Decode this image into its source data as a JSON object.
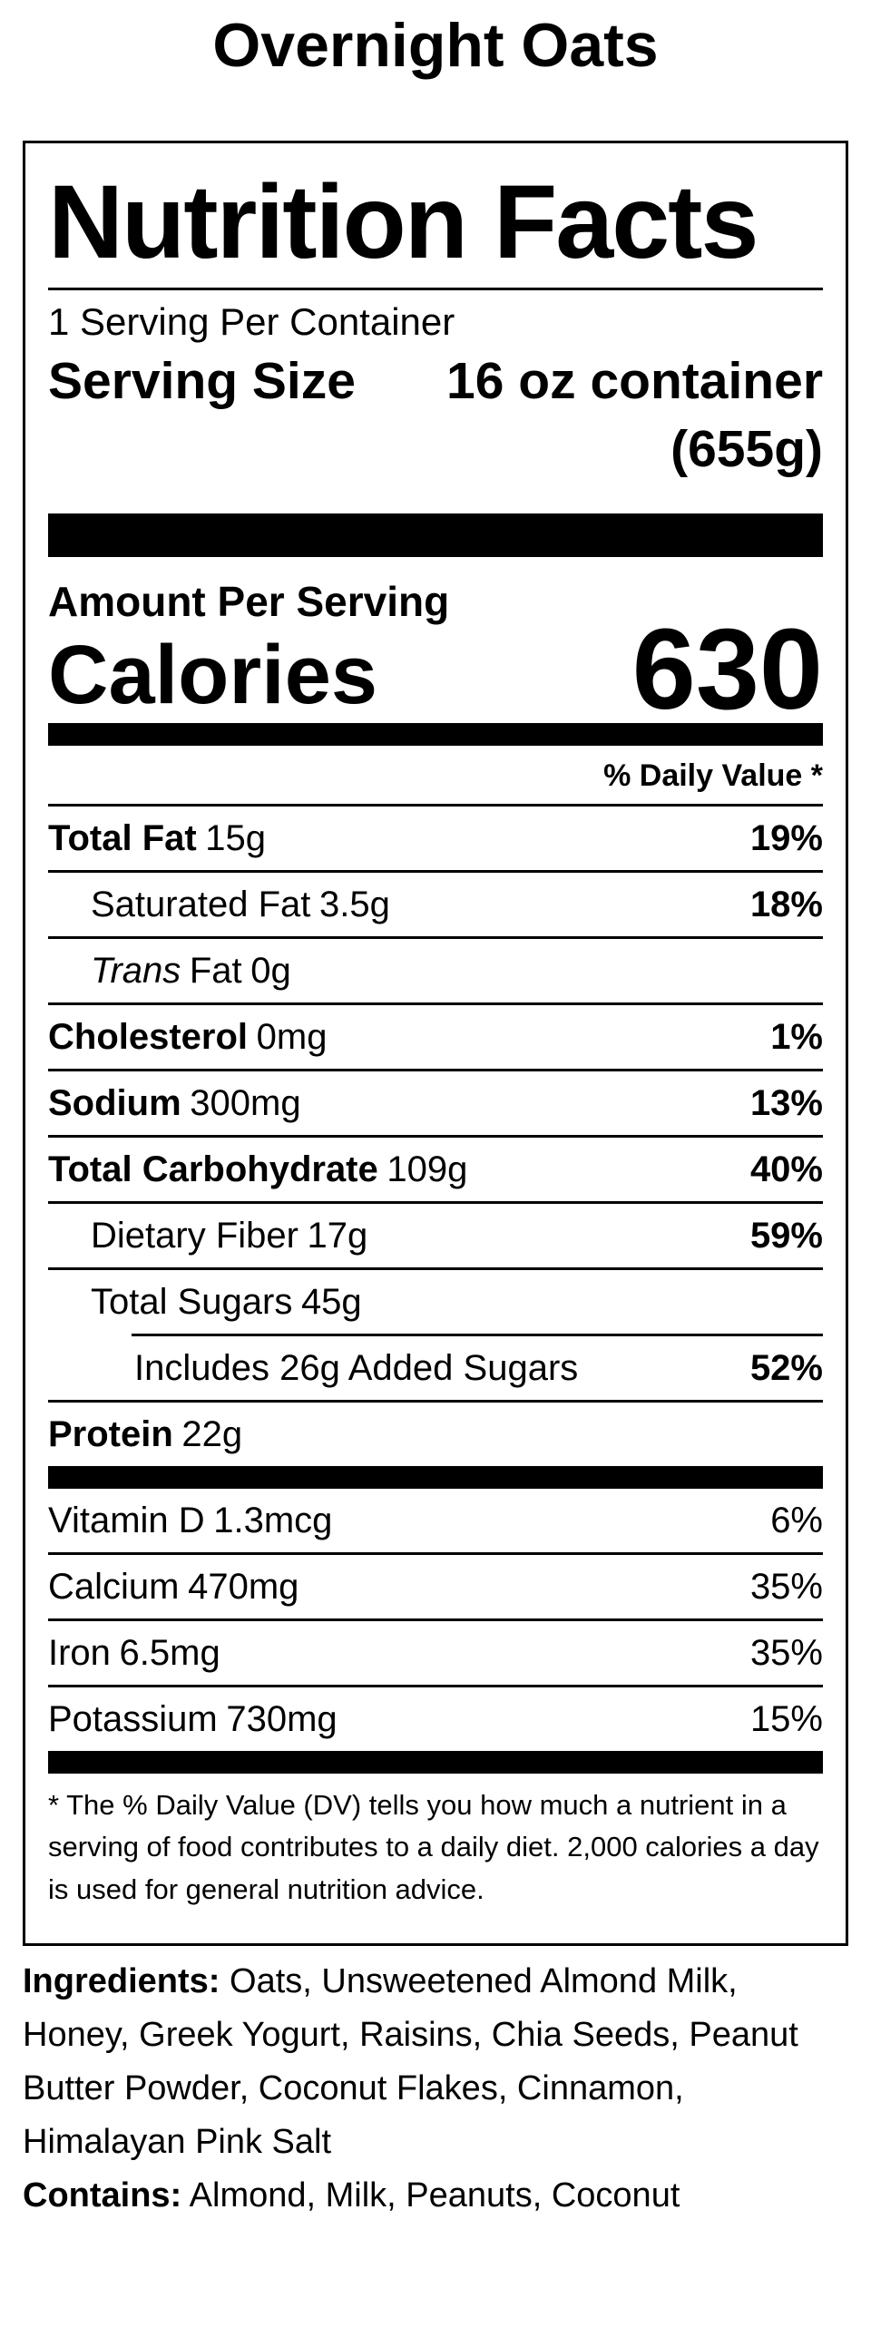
{
  "colors": {
    "text": "#000000",
    "background": "#ffffff"
  },
  "page_title": "Overnight Oats",
  "label": {
    "heading": "Nutrition Facts",
    "servings_per_container": "1 Serving Per Container",
    "serving_size_label": "Serving Size",
    "serving_size_value": "16 oz container",
    "serving_size_weight": "(655g)",
    "amount_per_serving": "Amount Per Serving",
    "calories_label": "Calories",
    "calories_value": "630",
    "daily_value_header": "% Daily Value *",
    "nutrients": [
      {
        "name": "Total Fat",
        "amount": "15g",
        "dv": "19%"
      },
      {
        "name": "Saturated Fat",
        "amount": "3.5g",
        "dv": "18%"
      },
      {
        "name_italic": "Trans",
        "name": "Fat",
        "amount": "0g",
        "dv": ""
      },
      {
        "name": "Cholesterol",
        "amount": "0mg",
        "dv": "1%"
      },
      {
        "name": "Sodium",
        "amount": "300mg",
        "dv": "13%"
      },
      {
        "name": "Total Carbohydrate",
        "amount": "109g",
        "dv": "40%"
      },
      {
        "name": "Dietary Fiber",
        "amount": "17g",
        "dv": "59%"
      },
      {
        "name": "Total Sugars",
        "amount": "45g",
        "dv": ""
      },
      {
        "name": "Includes 26g Added Sugars",
        "amount": "",
        "dv": "52%"
      },
      {
        "name": "Protein",
        "amount": "22g",
        "dv": ""
      }
    ],
    "vitamins": [
      {
        "name": "Vitamin D",
        "amount": "1.3mcg",
        "dv": "6%"
      },
      {
        "name": "Calcium",
        "amount": "470mg",
        "dv": "35%"
      },
      {
        "name": "Iron",
        "amount": "6.5mg",
        "dv": "35%"
      },
      {
        "name": "Potassium",
        "amount": "730mg",
        "dv": "15%"
      }
    ],
    "footnote": "* The % Daily Value (DV) tells you how much a nutrient in a serving of food contributes to a daily diet. 2,000 calories a day is used for general nutrition advice."
  },
  "ingredients": {
    "label": "Ingredients:",
    "text": " Oats, Unsweetened Almond Milk, Honey, Greek Yogurt, Raisins, Chia Seeds, Peanut Butter Powder, Coconut Flakes, Cinnamon, Himalayan Pink Salt"
  },
  "contains": {
    "label": "Contains:",
    "text": " Almond, Milk, Peanuts, Coconut"
  }
}
